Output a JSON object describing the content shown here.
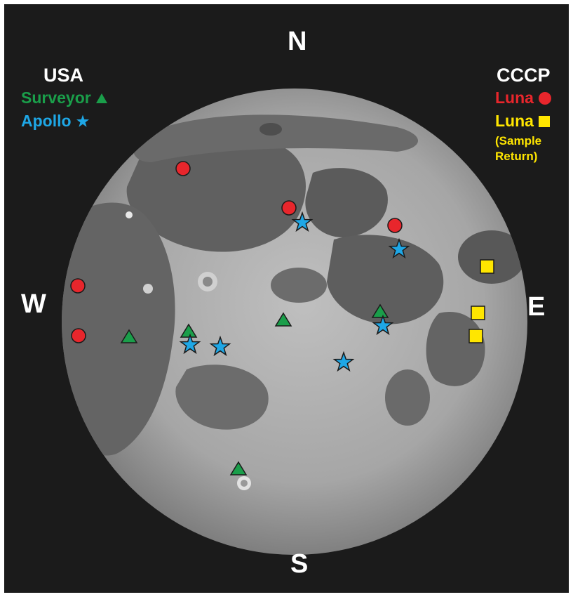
{
  "compass": {
    "north": "N",
    "south": "S",
    "east": "E",
    "west": "W"
  },
  "legend_usa": {
    "heading": "USA",
    "surveyor": {
      "label": "Surveyor",
      "symbol": "triangle",
      "color": "#1a9e4a"
    },
    "apollo": {
      "label": "Apollo",
      "symbol": "star",
      "color": "#1ea7e6"
    }
  },
  "legend_cccp": {
    "heading": "CCCP",
    "luna": {
      "label": "Luna",
      "symbol": "circle",
      "color": "#e8262c"
    },
    "luna_sample": {
      "label": "Luna",
      "sublabel_line1": "(Sample",
      "sublabel_line2": "Return)",
      "symbol": "square",
      "color": "#ffe600"
    }
  },
  "colors": {
    "background": "#1b1b1b",
    "moon_light": "#b9b9b9",
    "maria": "#5a5a5a",
    "outline": "#1a1a1a"
  }
}
